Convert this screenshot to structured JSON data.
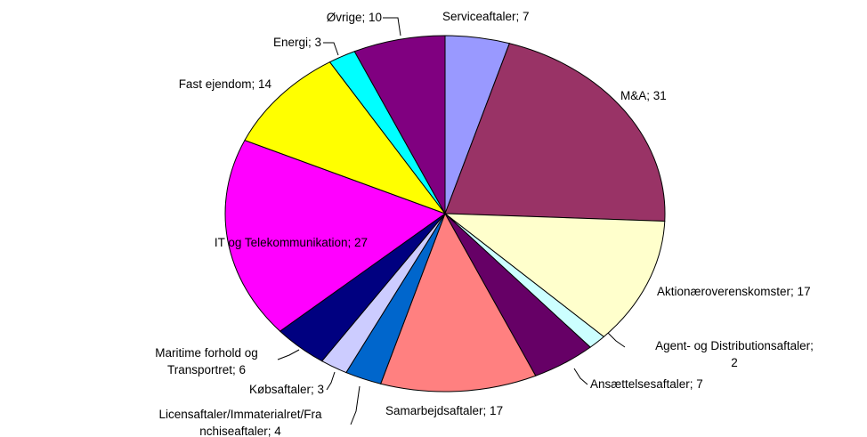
{
  "chart_data": {
    "type": "pie",
    "values": [
      7,
      31,
      17,
      2,
      7,
      17,
      4,
      3,
      6,
      27,
      14,
      3,
      10
    ],
    "value_labels": [
      [
        "Serviceaftaler; 7"
      ],
      [
        "M&A; 31"
      ],
      [
        "Aktionæroverenskomster; 17"
      ],
      [
        "Agent- og Distributionsaftaler;",
        "2"
      ],
      [
        "Ansættelsesaftaler; 7"
      ],
      [
        "Samarbejdsaftaler; 17"
      ],
      [
        "Licensaftaler/Immaterialret/Fra",
        "nchiseaftaler; 4"
      ],
      [
        "Købsaftaler; 3"
      ],
      [
        "Maritime forhold og",
        "Transportret; 6"
      ],
      [
        "IT og Telekommunikation; 27"
      ],
      [
        "Fast ejendom; 14"
      ],
      [
        "Energi; 3"
      ],
      [
        "Øvrige; 10"
      ]
    ],
    "colors": [
      "#9999ff",
      "#993366",
      "#ffffcc",
      "#ccffff",
      "#660066",
      "#ff8080",
      "#0066cc",
      "#ccccff",
      "#000080",
      "#ff00ff",
      "#ffff00",
      "#00ffff",
      "#800080"
    ]
  }
}
